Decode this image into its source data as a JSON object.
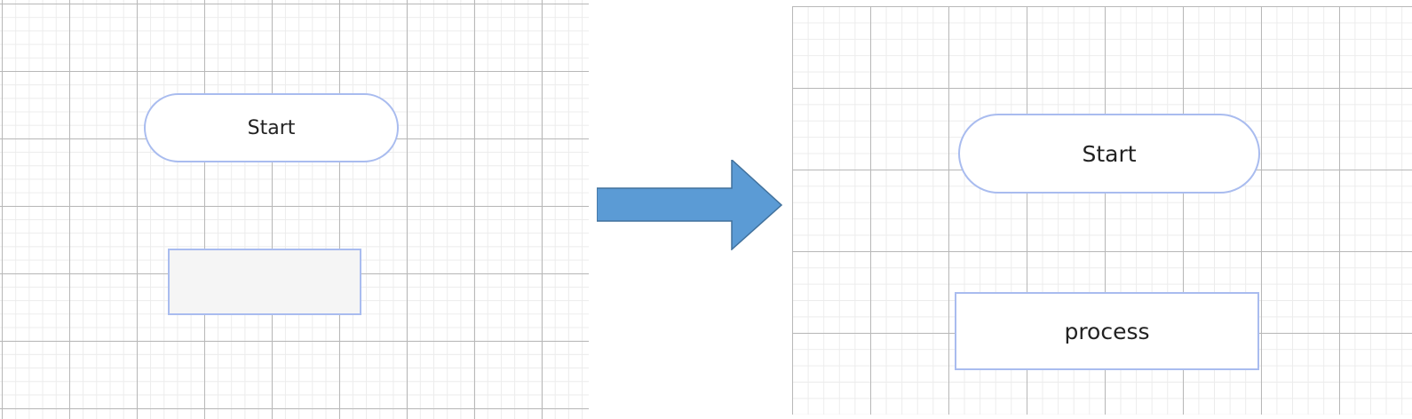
{
  "before": {
    "start_label": "Start",
    "process_label": "",
    "process_state": "selected-empty"
  },
  "after": {
    "start_label": "Start",
    "process_label": "process"
  },
  "colors": {
    "shape_border": "#a9bcef",
    "grid_major": "#b8b8b8",
    "grid_minor": "#ececec",
    "arrow_fill": "#5b9bd5",
    "arrow_stroke": "#41719c",
    "empty_process_fill": "#f5f5f5"
  },
  "icons": {
    "transition": "right-arrow-icon"
  }
}
